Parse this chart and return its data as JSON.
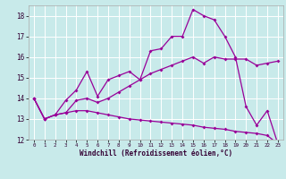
{
  "xlabel": "Windchill (Refroidissement éolien,°C)",
  "bg_color": "#c8eaea",
  "line_color": "#990099",
  "grid_color": "#ffffff",
  "xlim": [
    -0.5,
    23.5
  ],
  "ylim": [
    12,
    18.5
  ],
  "yticks": [
    12,
    13,
    14,
    15,
    16,
    17,
    18
  ],
  "xticks": [
    0,
    1,
    2,
    3,
    4,
    5,
    6,
    7,
    8,
    9,
    10,
    11,
    12,
    13,
    14,
    15,
    16,
    17,
    18,
    19,
    20,
    21,
    22,
    23
  ],
  "line1_x": [
    0,
    1,
    2,
    3,
    4,
    5,
    6,
    7,
    8,
    9,
    10,
    11,
    12,
    13,
    14,
    15,
    16,
    17,
    18,
    19,
    20,
    21,
    22,
    23
  ],
  "line1_y": [
    14.0,
    13.0,
    13.2,
    13.9,
    14.4,
    15.3,
    14.1,
    14.9,
    15.1,
    15.3,
    14.9,
    16.3,
    16.4,
    17.0,
    17.0,
    18.3,
    18.0,
    17.8,
    17.0,
    16.0,
    13.6,
    12.7,
    13.4,
    11.8
  ],
  "line2_x": [
    0,
    1,
    2,
    3,
    4,
    5,
    6,
    7,
    8,
    9,
    10,
    11,
    12,
    13,
    14,
    15,
    16,
    17,
    18,
    19,
    20,
    21,
    22,
    23
  ],
  "line2_y": [
    14.0,
    13.0,
    13.2,
    13.3,
    13.9,
    14.0,
    13.8,
    14.0,
    14.3,
    14.6,
    14.9,
    15.2,
    15.4,
    15.6,
    15.8,
    16.0,
    15.7,
    16.0,
    15.9,
    15.9,
    15.9,
    15.6,
    15.7,
    15.8
  ],
  "line3_x": [
    0,
    1,
    2,
    3,
    4,
    5,
    6,
    7,
    8,
    9,
    10,
    11,
    12,
    13,
    14,
    15,
    16,
    17,
    18,
    19,
    20,
    21,
    22,
    23
  ],
  "line3_y": [
    14.0,
    13.0,
    13.2,
    13.3,
    13.4,
    13.4,
    13.3,
    13.2,
    13.1,
    13.0,
    12.95,
    12.9,
    12.85,
    12.8,
    12.75,
    12.7,
    12.6,
    12.55,
    12.5,
    12.4,
    12.35,
    12.3,
    12.2,
    11.8
  ]
}
